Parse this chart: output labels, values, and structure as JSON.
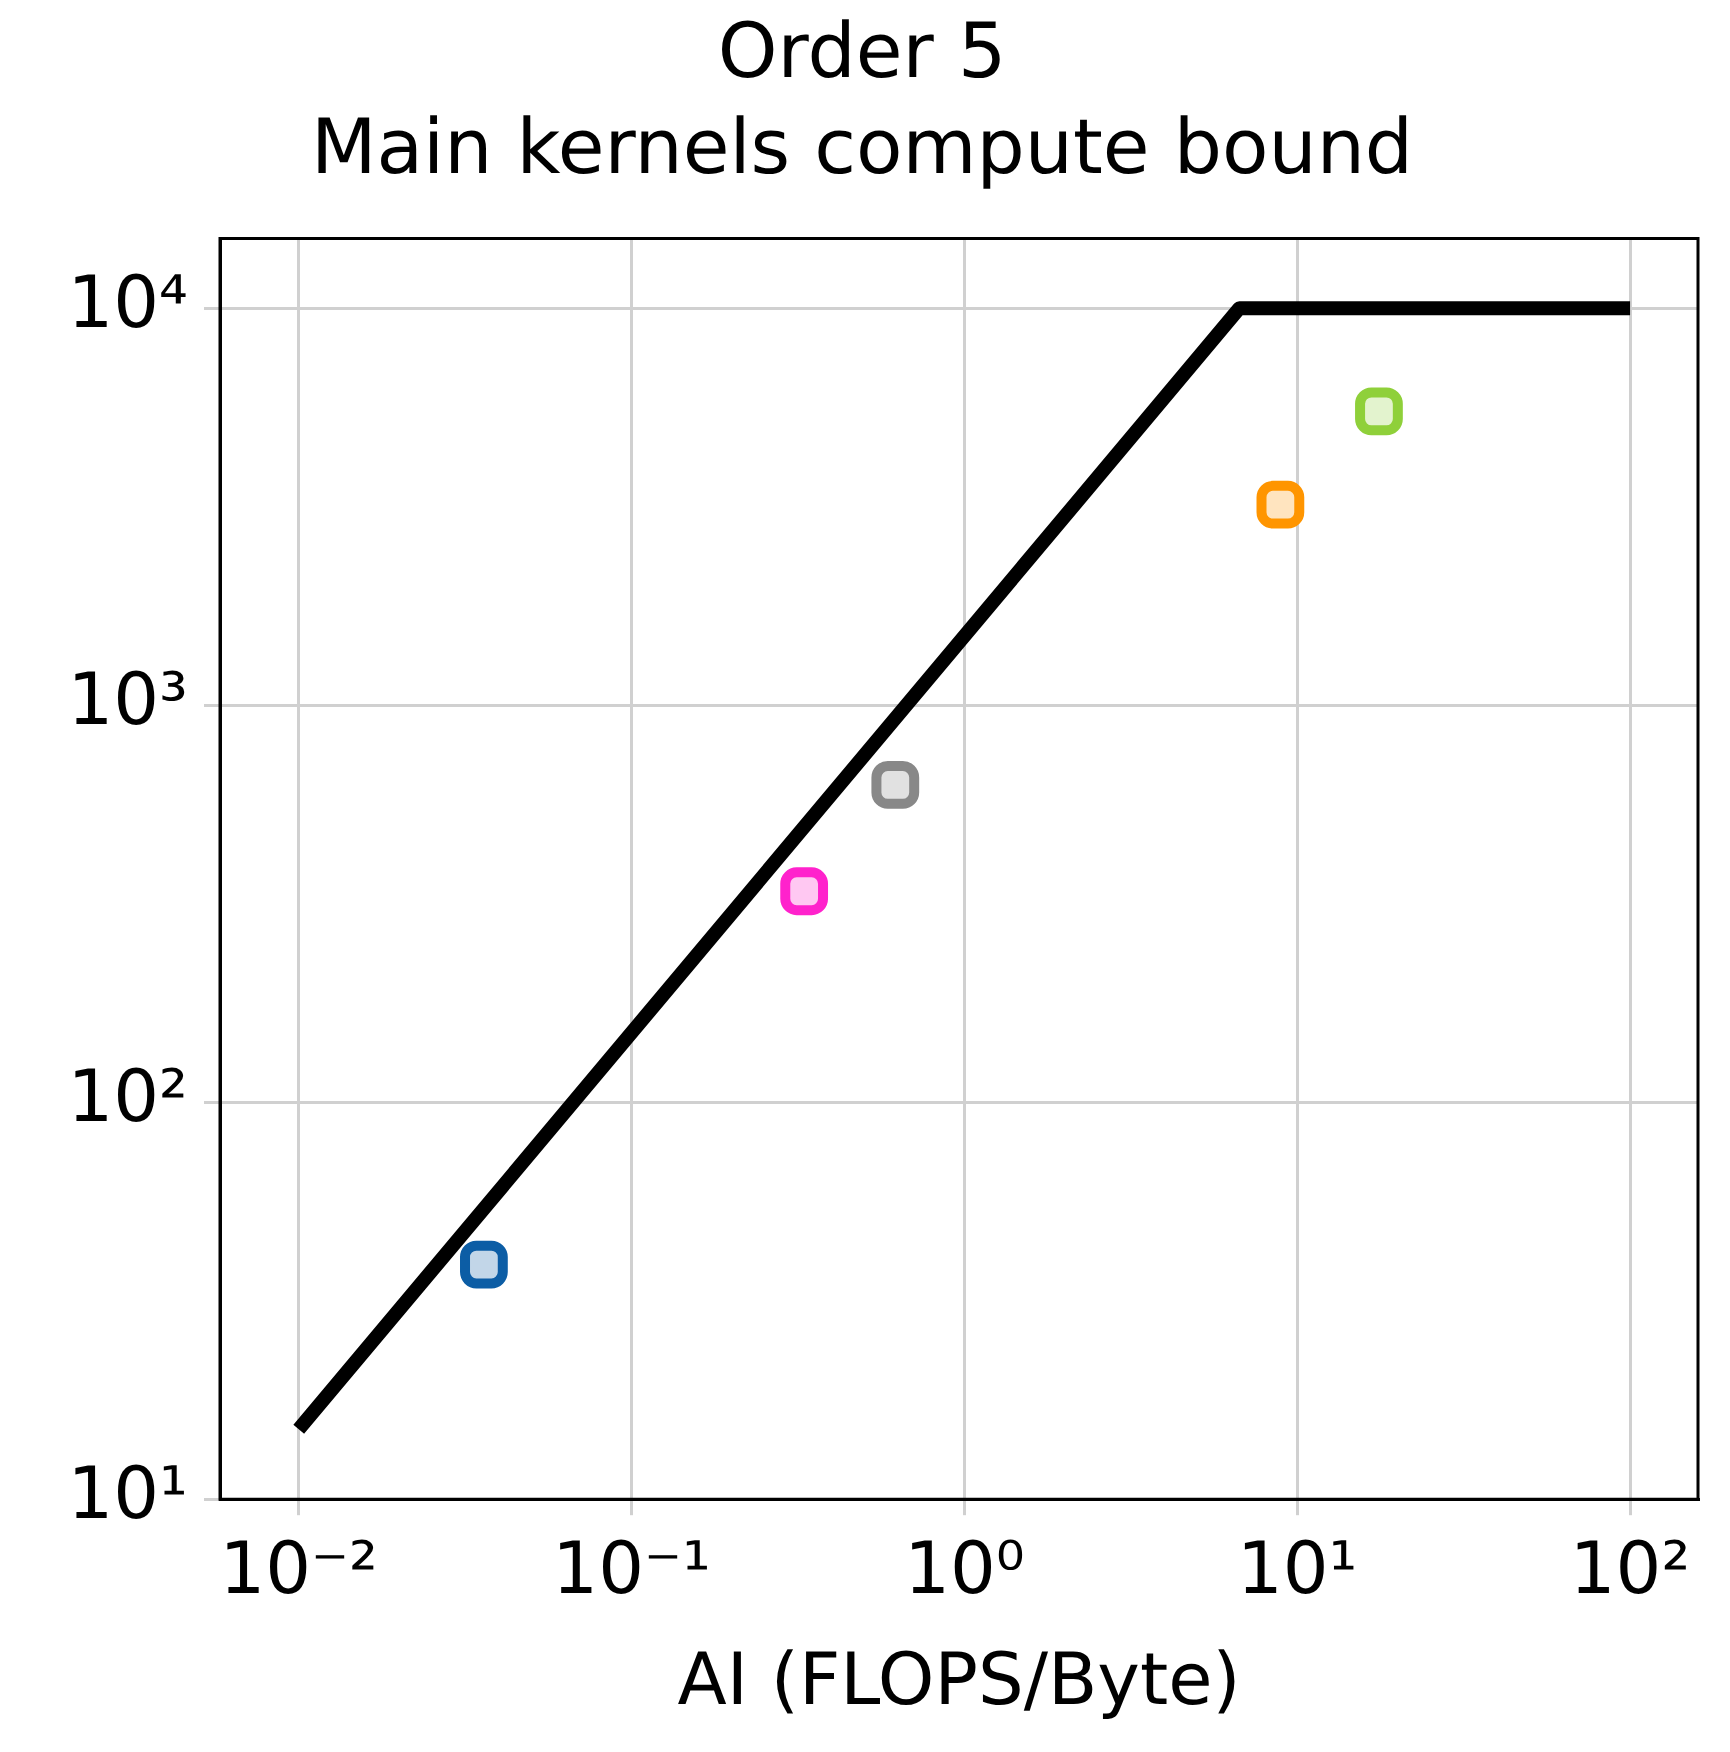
{
  "chart_data": {
    "type": "scatter",
    "title": "Order 5",
    "subtitle": "Main kernels compute bound",
    "xlabel": "AI (FLOPS/Byte)",
    "log": "xy",
    "grid": true,
    "legend": false,
    "xlim": [
      0.0058,
      160
    ],
    "ylim": [
      10,
      15000
    ],
    "xticks": [
      {
        "value": 0.01,
        "label": "10⁻²"
      },
      {
        "value": 0.1,
        "label": "10⁻¹"
      },
      {
        "value": 1,
        "label": "10⁰"
      },
      {
        "value": 10,
        "label": "10¹"
      },
      {
        "value": 100,
        "label": "10²"
      }
    ],
    "yticks": [
      {
        "value": 10,
        "label": "10¹"
      },
      {
        "value": 100,
        "label": "10²"
      },
      {
        "value": 1000,
        "label": "10³"
      },
      {
        "value": 10000,
        "label": "10⁴"
      }
    ],
    "series": [
      {
        "type": "line",
        "color": "#000000",
        "marker": "none",
        "line_style": "solid",
        "x": [
          0.01,
          6.7,
          100
        ],
        "values": [
          15,
          10000,
          10000
        ]
      },
      {
        "marker": "square",
        "x": [
          0.036,
          0.33,
          0.62,
          8.9,
          17.6
        ],
        "values": [
          39,
          340,
          630,
          3200,
          5500
        ],
        "colors": [
          "#0c5da5",
          "#ff22cc",
          "#888888",
          "#ff9500",
          "#8fd03a"
        ]
      }
    ]
  }
}
